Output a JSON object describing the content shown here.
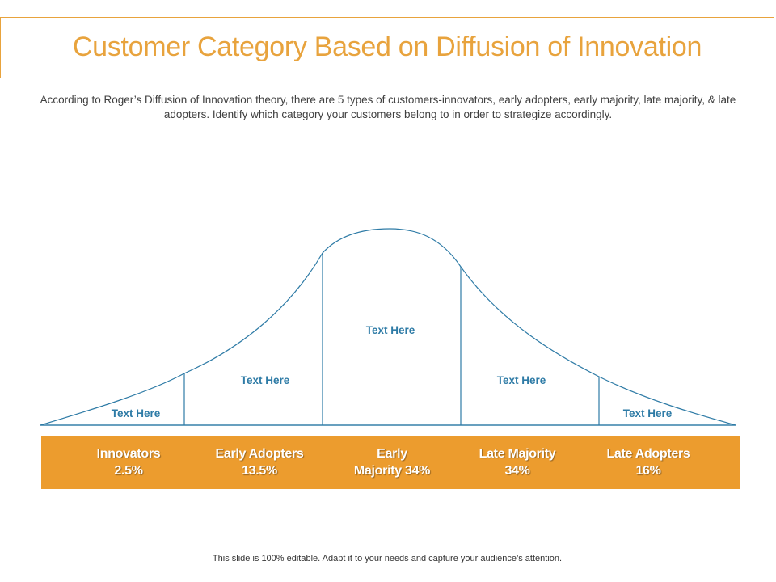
{
  "title": "Customer Category Based on Diffusion of Innovation",
  "subtitle": "According to Roger’s Diffusion of Innovation theory, there are 5 types of customers-innovators, early adopters, early majority, late majority, & late adopters. Identify which category your customers belong to in order to strategize accordingly.",
  "curve": {
    "segments": [
      {
        "label": "Text Here"
      },
      {
        "label": "Text Here"
      },
      {
        "label": "Text Here"
      },
      {
        "label": "Text Here"
      },
      {
        "label": "Text Here"
      }
    ]
  },
  "categories": [
    {
      "name": "Innovators",
      "percent": "2.5%"
    },
    {
      "name": "Early Adopters",
      "percent": "13.5%"
    },
    {
      "name": "Early",
      "percent": "Majority 34%"
    },
    {
      "name": "Late Majority",
      "percent": "34%"
    },
    {
      "name": "Late Adopters",
      "percent": "16%"
    }
  ],
  "footer": "This slide is 100% editable. Adapt it to your needs and capture your audience’s attention.",
  "colors": {
    "accent": "#E8A33D",
    "band": "#EC9C2E",
    "curve": "#2E7BA6"
  }
}
